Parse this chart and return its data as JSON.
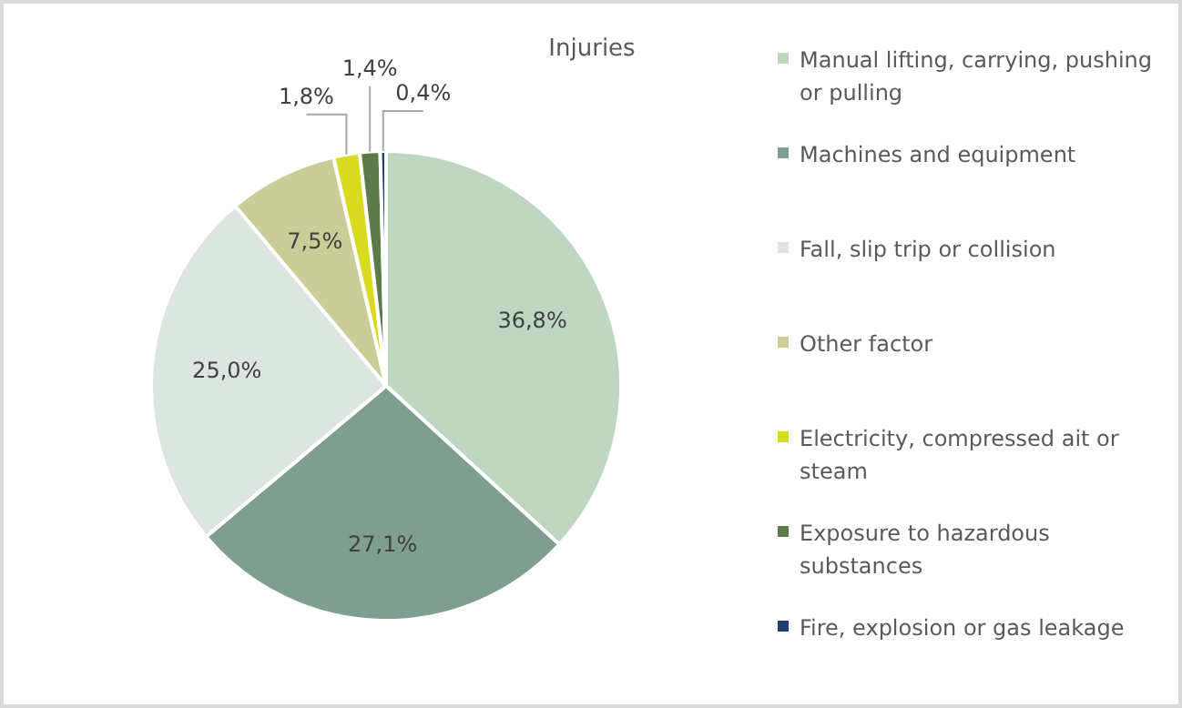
{
  "chart_data": {
    "type": "pie",
    "title": "Injuries",
    "categories": [
      "Manual lifting, carrying, pushing or pulling",
      "Machines and equipment",
      "Fall, slip trip or collision",
      "Other factor",
      "Electricity, compressed ait or steam",
      "Exposure to hazardous substances",
      "Fire, explosion or gas leakage"
    ],
    "values": [
      36.8,
      27.1,
      25.0,
      7.5,
      1.8,
      1.4,
      0.4
    ],
    "value_labels": [
      "36,8%",
      "27,1%",
      "25,0%",
      "7,5%",
      "1,8%",
      "1,4%",
      "0,4%"
    ],
    "colors": [
      "#bfd6c1",
      "#7f9e8e",
      "#dbe6e0",
      "#cccc99",
      "#d9dc1e",
      "#5b7b4a",
      "#1f3f6e"
    ],
    "legend": "right"
  }
}
